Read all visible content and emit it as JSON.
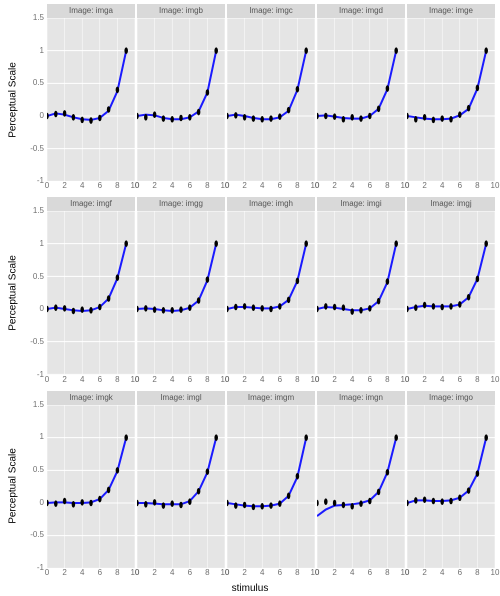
{
  "background_color": "#ffffff",
  "panel_background": "#e5e5e5",
  "strip_background": "#d9d9d9",
  "grid_color": "#ffffff",
  "xlabel": "stimulus",
  "ylabel": "Perceptual Scale",
  "xlim": [
    0,
    10
  ],
  "ylim": [
    -1,
    1.5
  ],
  "xticks": [
    0,
    2,
    4,
    6,
    8,
    10
  ],
  "yticks": [
    -1,
    -0.5,
    0,
    0.5,
    1,
    1.5
  ],
  "label_fontsize": 10,
  "tick_fontsize": 8,
  "strip_fontsize": 8,
  "line_color": "#1a1aff",
  "line_width": 2.0,
  "point_color": "#000000",
  "point_radius": 2.0,
  "rows": [
    {
      "panels": [
        {
          "title": "Image: imga",
          "x": [
            0,
            1,
            2,
            3,
            4,
            5,
            6,
            7,
            8,
            9
          ],
          "pts_y": [
            0.0,
            0.03,
            0.04,
            -0.02,
            -0.06,
            -0.07,
            -0.03,
            0.1,
            0.4,
            1.0
          ],
          "line_y": [
            0.0,
            0.04,
            0.02,
            -0.02,
            -0.05,
            -0.06,
            -0.03,
            0.08,
            0.38,
            1.0
          ]
        },
        {
          "title": "Image: imgb",
          "x": [
            0,
            1,
            2,
            3,
            4,
            5,
            6,
            7,
            8,
            9
          ],
          "pts_y": [
            0.0,
            -0.02,
            0.02,
            -0.04,
            -0.05,
            -0.03,
            -0.02,
            0.06,
            0.36,
            1.0
          ],
          "line_y": [
            0.0,
            0.02,
            0.01,
            -0.03,
            -0.05,
            -0.05,
            -0.02,
            0.07,
            0.36,
            1.0
          ]
        },
        {
          "title": "Image: imgc",
          "x": [
            0,
            1,
            2,
            3,
            4,
            5,
            6,
            7,
            8,
            9
          ],
          "pts_y": [
            0.0,
            0.01,
            -0.02,
            -0.04,
            -0.05,
            -0.04,
            -0.01,
            0.09,
            0.41,
            1.0
          ],
          "line_y": [
            0.0,
            0.02,
            0.0,
            -0.03,
            -0.05,
            -0.05,
            -0.02,
            0.08,
            0.4,
            1.0
          ]
        },
        {
          "title": "Image: imgd",
          "x": [
            0,
            1,
            2,
            3,
            4,
            5,
            6,
            7,
            8,
            9
          ],
          "pts_y": [
            0.0,
            0.0,
            -0.01,
            -0.05,
            -0.02,
            -0.04,
            0.0,
            0.11,
            0.42,
            1.0
          ],
          "line_y": [
            0.0,
            0.01,
            -0.01,
            -0.03,
            -0.04,
            -0.04,
            0.0,
            0.11,
            0.41,
            1.0
          ]
        },
        {
          "title": "Image: imge",
          "x": [
            0,
            1,
            2,
            3,
            4,
            5,
            6,
            7,
            8,
            9
          ],
          "pts_y": [
            0.0,
            -0.05,
            -0.02,
            -0.06,
            -0.04,
            -0.05,
            0.02,
            0.12,
            0.43,
            1.0
          ],
          "line_y": [
            0.0,
            -0.02,
            -0.04,
            -0.05,
            -0.05,
            -0.04,
            0.01,
            0.11,
            0.42,
            1.0
          ]
        }
      ]
    },
    {
      "panels": [
        {
          "title": "Image: imgf",
          "x": [
            0,
            1,
            2,
            3,
            4,
            5,
            6,
            7,
            8,
            9
          ],
          "pts_y": [
            0.0,
            0.02,
            0.01,
            -0.03,
            -0.01,
            -0.02,
            0.03,
            0.16,
            0.48,
            1.0
          ],
          "line_y": [
            0.0,
            0.02,
            0.0,
            -0.02,
            -0.03,
            -0.02,
            0.03,
            0.16,
            0.47,
            1.0
          ]
        },
        {
          "title": "Image: imgg",
          "x": [
            0,
            1,
            2,
            3,
            4,
            5,
            6,
            7,
            8,
            9
          ],
          "pts_y": [
            0.0,
            0.01,
            -0.01,
            -0.02,
            -0.02,
            -0.01,
            0.02,
            0.13,
            0.45,
            1.0
          ],
          "line_y": [
            0.0,
            0.01,
            0.0,
            -0.02,
            -0.03,
            -0.02,
            0.02,
            0.13,
            0.44,
            1.0
          ]
        },
        {
          "title": "Image: imgh",
          "x": [
            0,
            1,
            2,
            3,
            4,
            5,
            6,
            7,
            8,
            9
          ],
          "pts_y": [
            0.0,
            0.03,
            0.04,
            0.02,
            0.01,
            0.0,
            0.04,
            0.14,
            0.43,
            1.0
          ],
          "line_y": [
            0.0,
            0.03,
            0.03,
            0.02,
            0.01,
            0.01,
            0.04,
            0.14,
            0.43,
            1.0
          ]
        },
        {
          "title": "Image: imgi",
          "x": [
            0,
            1,
            2,
            3,
            4,
            5,
            6,
            7,
            8,
            9
          ],
          "pts_y": [
            0.0,
            0.04,
            0.03,
            0.02,
            -0.04,
            -0.02,
            0.01,
            0.12,
            0.42,
            1.0
          ],
          "line_y": [
            0.0,
            0.03,
            0.02,
            0.0,
            -0.02,
            -0.02,
            0.01,
            0.12,
            0.41,
            1.0
          ]
        },
        {
          "title": "Image: imgj",
          "x": [
            0,
            1,
            2,
            3,
            4,
            5,
            6,
            7,
            8,
            9
          ],
          "pts_y": [
            0.0,
            0.02,
            0.06,
            0.04,
            0.03,
            0.04,
            0.07,
            0.18,
            0.46,
            1.0
          ],
          "line_y": [
            0.0,
            0.03,
            0.05,
            0.04,
            0.04,
            0.04,
            0.07,
            0.18,
            0.46,
            1.0
          ]
        }
      ]
    },
    {
      "panels": [
        {
          "title": "Image: imgk",
          "x": [
            0,
            1,
            2,
            3,
            4,
            5,
            6,
            7,
            8,
            9
          ],
          "pts_y": [
            0.0,
            -0.01,
            0.03,
            -0.02,
            0.01,
            0.0,
            0.06,
            0.2,
            0.5,
            1.0
          ],
          "line_y": [
            0.0,
            0.01,
            0.01,
            0.0,
            0.0,
            0.01,
            0.06,
            0.2,
            0.49,
            1.0
          ]
        },
        {
          "title": "Image: imgl",
          "x": [
            0,
            1,
            2,
            3,
            4,
            5,
            6,
            7,
            8,
            9
          ],
          "pts_y": [
            0.0,
            -0.02,
            0.01,
            -0.04,
            -0.01,
            -0.03,
            0.02,
            0.18,
            0.48,
            1.0
          ],
          "line_y": [
            0.0,
            0.0,
            -0.01,
            -0.02,
            -0.02,
            -0.02,
            0.03,
            0.18,
            0.47,
            1.0
          ]
        },
        {
          "title": "Image: imgm",
          "x": [
            0,
            1,
            2,
            3,
            4,
            5,
            6,
            7,
            8,
            9
          ],
          "pts_y": [
            0.0,
            -0.04,
            -0.03,
            -0.06,
            -0.05,
            -0.04,
            -0.01,
            0.11,
            0.41,
            1.0
          ],
          "line_y": [
            0.0,
            -0.02,
            -0.04,
            -0.05,
            -0.05,
            -0.04,
            -0.01,
            0.11,
            0.4,
            1.0
          ]
        },
        {
          "title": "Image: imgn",
          "x": [
            0,
            1,
            2,
            3,
            4,
            5,
            6,
            7,
            8,
            9
          ],
          "pts_y": [
            0.0,
            0.02,
            0.0,
            -0.03,
            -0.05,
            -0.01,
            0.03,
            0.17,
            0.47,
            1.0
          ],
          "line_y": [
            -0.2,
            -0.1,
            -0.04,
            -0.03,
            -0.02,
            0.0,
            0.04,
            0.17,
            0.47,
            1.0
          ]
        },
        {
          "title": "Image: imgo",
          "x": [
            0,
            1,
            2,
            3,
            4,
            5,
            6,
            7,
            8,
            9
          ],
          "pts_y": [
            0.0,
            0.04,
            0.05,
            0.03,
            0.02,
            0.03,
            0.08,
            0.19,
            0.45,
            1.0
          ],
          "line_y": [
            0.0,
            0.04,
            0.04,
            0.03,
            0.03,
            0.04,
            0.08,
            0.19,
            0.45,
            1.0
          ]
        }
      ]
    }
  ]
}
